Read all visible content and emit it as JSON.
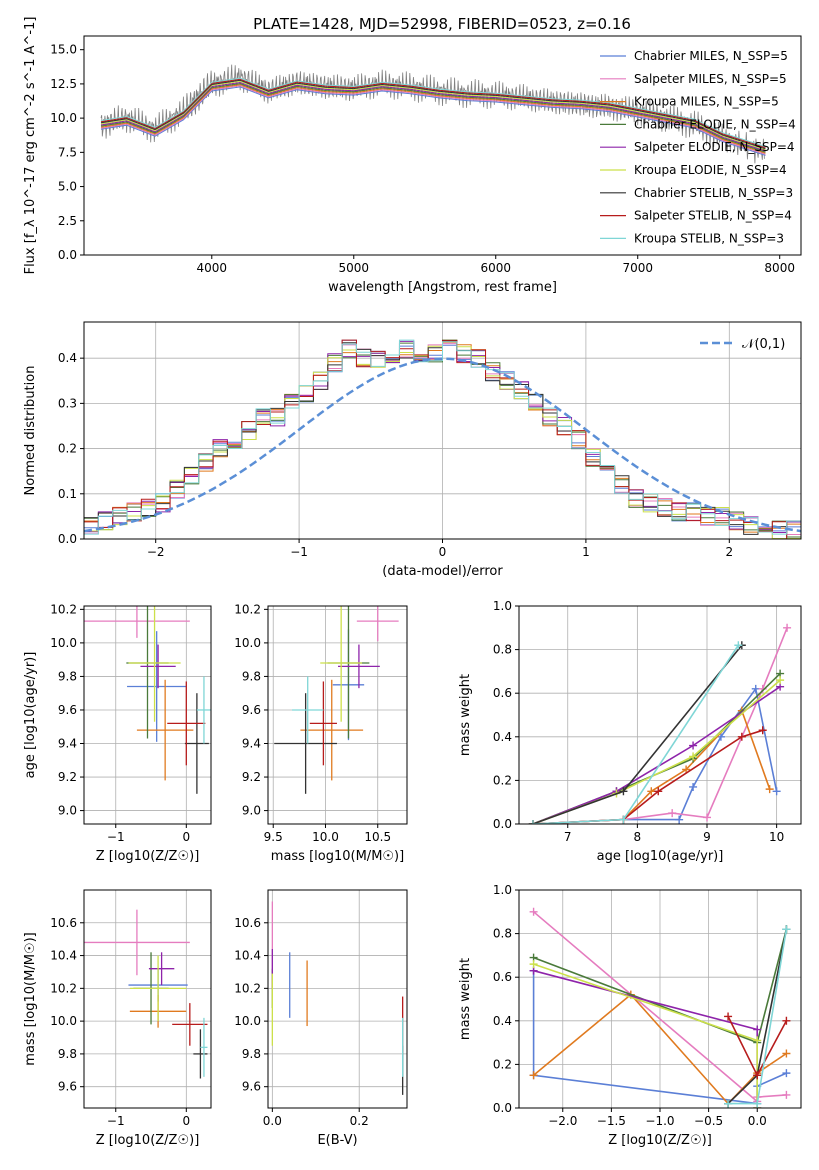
{
  "title": "PLATE=1428, MJD=52998, FIBERID=0523, z=0.16",
  "series_names": [
    "Chabrier MILES, N_SSP=5",
    "Salpeter MILES, N_SSP=5",
    "Kroupa MILES, N_SSP=5",
    "Chabrier ELODIE, N_SSP=4",
    "Salpeter ELODIE, N_SSP=4",
    "Kroupa ELODIE, N_SSP=4",
    "Chabrier STELIB, N_SSP=3",
    "Salpeter STELIB, N_SSP=4",
    "Kroupa STELIB, N_SSP=3"
  ],
  "colors": [
    "#5b7fd6",
    "#e57cbf",
    "#e07a1f",
    "#4a7a3a",
    "#8e24aa",
    "#cce04a",
    "#333333",
    "#b71c1c",
    "#7fd6d6"
  ],
  "chart_data": [
    {
      "type": "line",
      "panel": "spectrum",
      "xlabel": "wavelength [Angstrom, rest frame]",
      "ylabel": "Flux [f_λ 10^-17 erg cm^-2 s^-1 A^-1]",
      "xlim": [
        3100,
        8150
      ],
      "ylim": [
        0,
        16
      ],
      "xticks": [
        4000,
        5000,
        6000,
        7000,
        8000
      ],
      "yticks": [
        0.0,
        2.5,
        5.0,
        7.5,
        10.0,
        12.5,
        15.0
      ],
      "legend": "upper-right",
      "data_series": {
        "name": "data",
        "color": "#808080",
        "x": [
          3220,
          3400,
          3600,
          3800,
          3900,
          4000,
          4200,
          4400,
          4600,
          4800,
          5000,
          5200,
          5400,
          5600,
          5800,
          6000,
          6200,
          6400,
          6600,
          6800,
          7000,
          7200,
          7400,
          7600,
          7900
        ],
        "y": [
          9.5,
          10.0,
          9.2,
          10.5,
          11.5,
          12.5,
          13.0,
          12.0,
          12.6,
          12.3,
          12.2,
          12.5,
          12.3,
          12.0,
          11.8,
          11.7,
          11.5,
          11.2,
          11.0,
          10.8,
          10.5,
          10.0,
          9.5,
          8.5,
          7.5
        ]
      },
      "model_x": [
        3220,
        3400,
        3600,
        3800,
        4000,
        4200,
        4400,
        4600,
        4800,
        5000,
        5200,
        5400,
        5600,
        5800,
        6000,
        6200,
        6400,
        6600,
        6800,
        7000,
        7200,
        7400,
        7600,
        7900
      ],
      "model_y": [
        9.5,
        9.8,
        9.0,
        10.2,
        12.3,
        12.6,
        11.8,
        12.4,
        12.1,
        12.0,
        12.3,
        12.1,
        11.8,
        11.6,
        11.5,
        11.3,
        11.1,
        11.0,
        10.8,
        10.4,
        10.0,
        9.6,
        8.6,
        7.6
      ]
    },
    {
      "type": "bar",
      "panel": "residual-histogram",
      "xlabel": "(data-model)/error",
      "ylabel": "Normed distribution",
      "xlim": [
        -2.5,
        2.5
      ],
      "ylim": [
        0,
        0.48
      ],
      "xticks": [
        -2,
        -1,
        0,
        1,
        2
      ],
      "yticks": [
        0.0,
        0.1,
        0.2,
        0.3,
        0.4
      ],
      "legend_label": "𝒩(0,1)",
      "bin_start": -2.5,
      "bin_width": 0.1,
      "values": [
        0.03,
        0.04,
        0.05,
        0.06,
        0.07,
        0.08,
        0.11,
        0.14,
        0.17,
        0.2,
        0.22,
        0.24,
        0.27,
        0.27,
        0.3,
        0.32,
        0.35,
        0.39,
        0.42,
        0.4,
        0.4,
        0.41,
        0.42,
        0.4,
        0.41,
        0.42,
        0.41,
        0.4,
        0.37,
        0.35,
        0.33,
        0.3,
        0.27,
        0.25,
        0.22,
        0.18,
        0.15,
        0.12,
        0.09,
        0.08,
        0.07,
        0.06,
        0.06,
        0.05,
        0.05,
        0.04,
        0.03,
        0.03,
        0.02,
        0.02
      ]
    },
    {
      "type": "scatter",
      "panel": "age-vs-Z",
      "xlabel": "Z [log10(Z/Z☉)]",
      "ylabel": "age [log10(age/yr)]",
      "xlim": [
        -1.45,
        0.35
      ],
      "ylim": [
        8.92,
        10.22
      ],
      "xticks": [
        -1,
        0
      ],
      "yticks": [
        9.0,
        9.2,
        9.4,
        9.6,
        9.8,
        10.0,
        10.2
      ],
      "points": [
        {
          "x": -0.42,
          "y": 9.74,
          "xerr": 0.42,
          "yerr": 0.33
        },
        {
          "x": -0.7,
          "y": 10.13,
          "xerr": 0.75,
          "yerr": 0.1
        },
        {
          "x": -0.3,
          "y": 9.48,
          "xerr": 0.4,
          "yerr": 0.3
        },
        {
          "x": -0.55,
          "y": 9.88,
          "xerr": 0.3,
          "yerr": 0.45
        },
        {
          "x": -0.4,
          "y": 9.86,
          "xerr": 0.25,
          "yerr": 0.13
        },
        {
          "x": -0.45,
          "y": 9.88,
          "xerr": 0.37,
          "yerr": 0.35
        },
        {
          "x": 0.15,
          "y": 9.4,
          "xerr": 0.17,
          "yerr": 0.3
        },
        {
          "x": 0.0,
          "y": 9.52,
          "xerr": 0.27,
          "yerr": 0.25
        },
        {
          "x": 0.25,
          "y": 9.6,
          "xerr": 0.1,
          "yerr": 0.2
        }
      ]
    },
    {
      "type": "scatter",
      "panel": "age-vs-mass",
      "xlabel": "mass [log10(M/M☉)]",
      "ylabel": "",
      "xlim": [
        9.45,
        10.78
      ],
      "ylim": [
        8.92,
        10.22
      ],
      "xticks": [
        9.5,
        10.0,
        10.5
      ],
      "yticks": [
        9.0,
        9.2,
        9.4,
        9.6,
        9.8,
        10.0,
        10.2
      ],
      "points": [
        {
          "x": 10.22,
          "y": 9.75,
          "xerr": 0.15,
          "yerr": 0.33
        },
        {
          "x": 10.5,
          "y": 10.13,
          "xerr": 0.2,
          "yerr": 0.12
        },
        {
          "x": 10.06,
          "y": 9.48,
          "xerr": 0.3,
          "yerr": 0.3
        },
        {
          "x": 10.22,
          "y": 9.88,
          "xerr": 0.2,
          "yerr": 0.45
        },
        {
          "x": 10.32,
          "y": 9.86,
          "xerr": 0.2,
          "yerr": 0.13
        },
        {
          "x": 10.15,
          "y": 9.88,
          "xerr": 0.2,
          "yerr": 0.35
        },
        {
          "x": 9.81,
          "y": 9.4,
          "xerr": 0.3,
          "yerr": 0.3
        },
        {
          "x": 9.98,
          "y": 9.52,
          "xerr": 0.13,
          "yerr": 0.25
        },
        {
          "x": 9.83,
          "y": 9.6,
          "xerr": 0.15,
          "yerr": 0.2
        }
      ]
    },
    {
      "type": "line",
      "panel": "mass-weight-vs-age",
      "xlabel": "age [log10(age/yr)]",
      "ylabel": "mass weight",
      "xlim": [
        6.3,
        10.35
      ],
      "ylim": [
        0,
        1.0
      ],
      "xticks": [
        7,
        8,
        9,
        10
      ],
      "yticks": [
        0.0,
        0.2,
        0.4,
        0.6,
        0.8,
        1.0
      ],
      "series_xy": [
        {
          "x": [
            6.5,
            7.8,
            8.6,
            8.8,
            9.2,
            9.7,
            10.0
          ],
          "y": [
            0.0,
            0.02,
            0.02,
            0.17,
            0.4,
            0.62,
            0.15
          ]
        },
        {
          "x": [
            6.5,
            7.8,
            8.5,
            9.0,
            9.8,
            10.15
          ],
          "y": [
            0.0,
            0.02,
            0.05,
            0.03,
            0.62,
            0.9
          ]
        },
        {
          "x": [
            6.5,
            7.8,
            8.2,
            8.7,
            9.5,
            9.9
          ],
          "y": [
            0.0,
            0.02,
            0.15,
            0.25,
            0.52,
            0.16
          ]
        },
        {
          "x": [
            6.5,
            7.7,
            8.8,
            10.05
          ],
          "y": [
            0.0,
            0.15,
            0.3,
            0.69
          ]
        },
        {
          "x": [
            6.5,
            7.7,
            8.8,
            10.05
          ],
          "y": [
            0.0,
            0.15,
            0.36,
            0.63
          ]
        },
        {
          "x": [
            6.5,
            7.7,
            8.8,
            10.05
          ],
          "y": [
            0.0,
            0.14,
            0.31,
            0.66
          ]
        },
        {
          "x": [
            6.5,
            7.8,
            9.5
          ],
          "y": [
            0.0,
            0.15,
            0.82
          ]
        },
        {
          "x": [
            6.5,
            7.8,
            8.3,
            9.5,
            9.8
          ],
          "y": [
            0.0,
            0.02,
            0.15,
            0.4,
            0.43
          ]
        },
        {
          "x": [
            6.5,
            7.8,
            9.45
          ],
          "y": [
            0.0,
            0.02,
            0.82
          ]
        }
      ]
    },
    {
      "type": "scatter",
      "panel": "mass-vs-Z",
      "xlabel": "Z [log10(Z/Z☉)]",
      "ylabel": "mass [log10(M/M☉)]",
      "xlim": [
        -1.45,
        0.35
      ],
      "ylim": [
        9.47,
        10.8
      ],
      "xticks": [
        -1,
        0
      ],
      "yticks": [
        9.6,
        9.8,
        10.0,
        10.2,
        10.4,
        10.6
      ],
      "points": [
        {
          "x": -0.4,
          "y": 10.22,
          "xerr": 0.42,
          "yerr": 0.1
        },
        {
          "x": -0.7,
          "y": 10.48,
          "xerr": 0.75,
          "yerr": 0.2
        },
        {
          "x": -0.4,
          "y": 10.06,
          "xerr": 0.4,
          "yerr": 0.1
        },
        {
          "x": -0.5,
          "y": 10.2,
          "xerr": 0.25,
          "yerr": 0.22
        },
        {
          "x": -0.35,
          "y": 10.32,
          "xerr": 0.18,
          "yerr": 0.1
        },
        {
          "x": -0.4,
          "y": 10.2,
          "xerr": 0.4,
          "yerr": 0.2
        },
        {
          "x": 0.2,
          "y": 9.8,
          "xerr": 0.1,
          "yerr": 0.15
        },
        {
          "x": 0.05,
          "y": 9.98,
          "xerr": 0.25,
          "yerr": 0.13
        },
        {
          "x": 0.25,
          "y": 9.84,
          "xerr": 0.05,
          "yerr": 0.18
        }
      ]
    },
    {
      "type": "scatter",
      "panel": "mass-vs-EBV",
      "xlabel": "E(B-V)",
      "ylabel": "",
      "xlim": [
        -0.01,
        0.31
      ],
      "ylim": [
        9.47,
        10.8
      ],
      "xticks": [
        0.0,
        0.2
      ],
      "yticks": [
        9.6,
        9.8,
        10.0,
        10.2,
        10.4,
        10.6
      ],
      "points": [
        {
          "x": 0.04,
          "y": 10.22,
          "xerr": 0,
          "yerr": 0.2
        },
        {
          "x": 0.0,
          "y": 10.48,
          "xerr": 0,
          "yerr": 0.25
        },
        {
          "x": 0.08,
          "y": 10.17,
          "xerr": 0,
          "yerr": 0.2
        },
        {
          "x": 0.0,
          "y": 10.2,
          "xerr": 0,
          "yerr": 0.12
        },
        {
          "x": 0.0,
          "y": 10.32,
          "xerr": 0,
          "yerr": 0.12
        },
        {
          "x": 0.0,
          "y": 10.07,
          "xerr": 0,
          "yerr": 0.22
        },
        {
          "x": 0.3,
          "y": 9.7,
          "xerr": 0,
          "yerr": 0.15
        },
        {
          "x": 0.3,
          "y": 9.98,
          "xerr": 0,
          "yerr": 0.17
        },
        {
          "x": 0.3,
          "y": 9.84,
          "xerr": 0,
          "yerr": 0.18
        }
      ]
    },
    {
      "type": "line",
      "panel": "mass-weight-vs-Z",
      "xlabel": "Z [log10(Z/Z☉)]",
      "ylabel": "mass weight",
      "xlim": [
        -2.45,
        0.45
      ],
      "ylim": [
        0,
        1.0
      ],
      "xticks": [
        -2.0,
        -1.5,
        -1.0,
        -0.5,
        0.0
      ],
      "yticks": [
        0.0,
        0.2,
        0.4,
        0.6,
        0.8,
        1.0
      ],
      "series_xy": [
        {
          "x": [
            -2.3,
            -2.3,
            0.0,
            0.0,
            0.3
          ],
          "y": [
            0.63,
            0.15,
            0.02,
            0.1,
            0.16
          ]
        },
        {
          "x": [
            -2.3,
            0.0,
            0.0,
            0.3
          ],
          "y": [
            0.9,
            0.03,
            0.05,
            0.06
          ]
        },
        {
          "x": [
            -2.3,
            -1.3,
            -0.3,
            0.0,
            0.3
          ],
          "y": [
            0.15,
            0.52,
            0.02,
            0.16,
            0.25
          ]
        },
        {
          "x": [
            -2.3,
            0.0,
            0.3
          ],
          "y": [
            0.69,
            0.3,
            0.82
          ]
        },
        {
          "x": [
            -2.3,
            0.0,
            0.0
          ],
          "y": [
            0.63,
            0.36,
            0.0
          ]
        },
        {
          "x": [
            -2.3,
            0.0,
            0.0
          ],
          "y": [
            0.66,
            0.31,
            0.0
          ]
        },
        {
          "x": [
            -0.3,
            0.0,
            0.3
          ],
          "y": [
            0.02,
            0.15,
            0.82
          ]
        },
        {
          "x": [
            -0.3,
            0.0,
            0.3
          ],
          "y": [
            0.42,
            0.15,
            0.4
          ]
        },
        {
          "x": [
            -0.3,
            0.0,
            0.3
          ],
          "y": [
            0.02,
            0.02,
            0.82
          ]
        }
      ]
    }
  ]
}
